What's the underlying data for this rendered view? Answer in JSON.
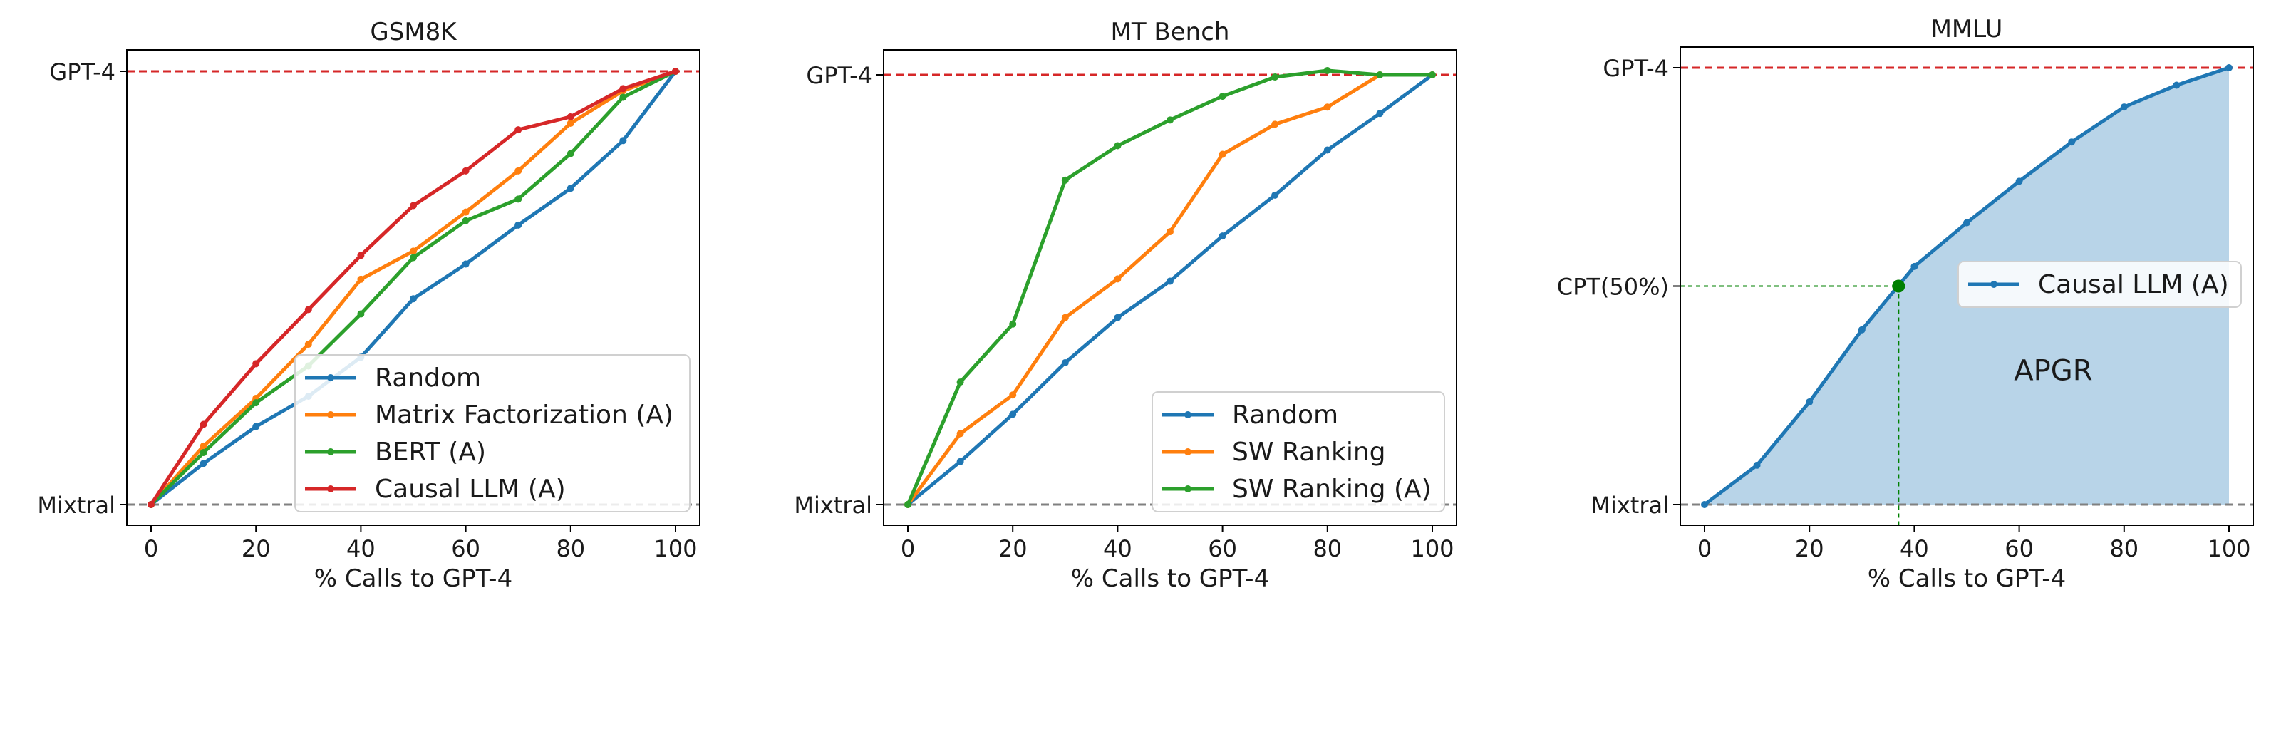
{
  "chart_data": [
    {
      "type": "line",
      "title": "GSM8K",
      "xlabel": "% Calls to GPT-4",
      "ylabel": "",
      "x": [
        0,
        10,
        20,
        30,
        40,
        50,
        60,
        70,
        80,
        90,
        100
      ],
      "xticks": [
        "0",
        "20",
        "40",
        "60",
        "80",
        "100"
      ],
      "yticks": [
        "Mixtral",
        "GPT-4"
      ],
      "ylim": [
        0,
        1
      ],
      "reference_lines": [
        {
          "label": "GPT-4",
          "y": 1,
          "color": "#d62728",
          "style": "dashed"
        },
        {
          "label": "Mixtral",
          "y": 0,
          "color": "#808080",
          "style": "dashed"
        }
      ],
      "legend_position": "lower right",
      "series": [
        {
          "name": "Random",
          "color": "#1f77b4",
          "values": [
            0,
            0.095,
            0.18,
            0.25,
            0.34,
            0.475,
            0.555,
            0.645,
            0.73,
            0.84,
            1.0
          ]
        },
        {
          "name": "Matrix Factorization (A)",
          "color": "#ff7f0e",
          "values": [
            0,
            0.135,
            0.245,
            0.37,
            0.52,
            0.585,
            0.675,
            0.77,
            0.88,
            0.955,
            1.0
          ]
        },
        {
          "name": "BERT (A)",
          "color": "#2ca02c",
          "values": [
            0,
            0.12,
            0.235,
            0.32,
            0.44,
            0.57,
            0.655,
            0.705,
            0.81,
            0.94,
            1.0
          ]
        },
        {
          "name": "Causal LLM (A)",
          "color": "#d62728",
          "values": [
            0,
            0.185,
            0.325,
            0.45,
            0.575,
            0.69,
            0.77,
            0.865,
            0.895,
            0.96,
            1.0
          ]
        }
      ]
    },
    {
      "type": "line",
      "title": "MT Bench",
      "xlabel": "% Calls to GPT-4",
      "ylabel": "",
      "x": [
        0,
        10,
        20,
        30,
        40,
        50,
        60,
        70,
        80,
        90,
        100
      ],
      "xticks": [
        "0",
        "20",
        "40",
        "60",
        "80",
        "100"
      ],
      "yticks": [
        "Mixtral",
        "GPT-4"
      ],
      "ylim": [
        0,
        1
      ],
      "reference_lines": [
        {
          "label": "GPT-4",
          "y": 1,
          "color": "#d62728",
          "style": "dashed"
        },
        {
          "label": "Mixtral",
          "y": 0,
          "color": "#808080",
          "style": "dashed"
        }
      ],
      "legend_position": "lower right",
      "series": [
        {
          "name": "Random",
          "color": "#1f77b4",
          "values": [
            0,
            0.1,
            0.21,
            0.33,
            0.435,
            0.52,
            0.625,
            0.72,
            0.825,
            0.91,
            1.0
          ]
        },
        {
          "name": "SW Ranking",
          "color": "#ff7f0e",
          "values": [
            0,
            0.165,
            0.255,
            0.435,
            0.525,
            0.635,
            0.815,
            0.885,
            0.925,
            1.0,
            1.0
          ]
        },
        {
          "name": "SW Ranking (A)",
          "color": "#2ca02c",
          "values": [
            0,
            0.285,
            0.42,
            0.755,
            0.835,
            0.895,
            0.95,
            0.995,
            1.01,
            1.0,
            1.0
          ]
        }
      ]
    },
    {
      "type": "area",
      "title": "MMLU",
      "xlabel": "% Calls to GPT-4",
      "ylabel": "",
      "x": [
        0,
        10,
        20,
        30,
        40,
        50,
        60,
        70,
        80,
        90,
        100
      ],
      "xticks": [
        "0",
        "20",
        "40",
        "60",
        "80",
        "100"
      ],
      "yticks": [
        "Mixtral",
        "CPT(50%)",
        "GPT-4"
      ],
      "ylim": [
        0,
        1
      ],
      "reference_lines": [
        {
          "label": "GPT-4",
          "y": 1,
          "color": "#d62728",
          "style": "dashed"
        },
        {
          "label": "Mixtral",
          "y": 0,
          "color": "#808080",
          "style": "dashed"
        }
      ],
      "annotation_point": {
        "label": "CPT(50%)",
        "x": 37,
        "y": 0.5,
        "color": "#008000"
      },
      "area_label": "APGR",
      "area_color": "#b8d4e8",
      "legend_position": "center right",
      "series": [
        {
          "name": "Causal LLM (A)",
          "color": "#1f77b4",
          "values": [
            0,
            0.09,
            0.235,
            0.4,
            0.545,
            0.645,
            0.74,
            0.83,
            0.91,
            0.96,
            1.0
          ]
        }
      ]
    }
  ]
}
